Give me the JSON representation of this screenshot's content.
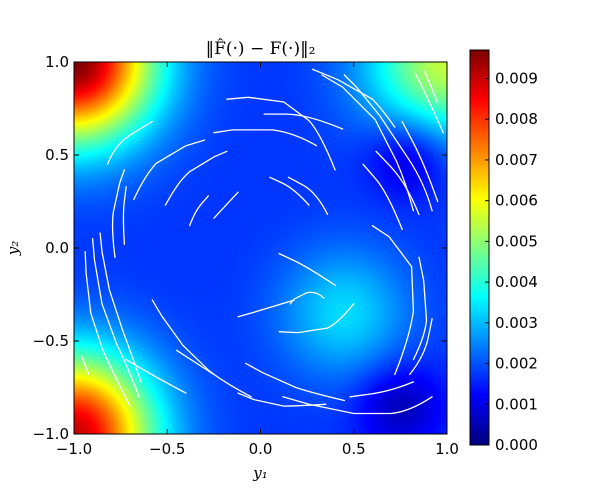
{
  "chart_data": {
    "type": "heatmap",
    "title": "‖F̂(·) − F(·)‖₂",
    "xlabel": "y₁",
    "ylabel": "y₂",
    "xlim": [
      -1.0,
      1.0
    ],
    "ylim": [
      -1.0,
      1.0
    ],
    "xticks": [
      "−1.0",
      "−0.5",
      "0.0",
      "0.5",
      "1.0"
    ],
    "yticks": [
      "1.0",
      "0.5",
      "0.0",
      "−0.5",
      "−1.0"
    ],
    "colormap": "jet",
    "colorbar": {
      "min": 0.0,
      "max": 0.0097,
      "ticks": [
        "0.009",
        "0.008",
        "0.007",
        "0.006",
        "0.005",
        "0.004",
        "0.003",
        "0.002",
        "0.001",
        "0.000"
      ]
    },
    "field_features": [
      {
        "x": -1.0,
        "y": 1.0,
        "value": 0.0097
      },
      {
        "x": -1.0,
        "y": -1.0,
        "value": 0.009
      },
      {
        "x": 1.0,
        "y": 1.0,
        "value": 0.0055
      },
      {
        "x": 0.45,
        "y": -0.35,
        "value": 0.0033
      },
      {
        "x": 0.8,
        "y": 0.5,
        "value": 0.0005
      },
      {
        "x": 0.75,
        "y": -0.85,
        "value": 0.0005
      }
    ],
    "streamline_color": "#ffffff",
    "streamlines": [
      [
        [
          -0.18,
          0.52
        ],
        [
          -0.32,
          0.46
        ],
        [
          -0.44,
          0.36
        ],
        [
          -0.51,
          0.23
        ]
      ],
      [
        [
          -0.3,
          0.58
        ],
        [
          -0.5,
          0.52
        ],
        [
          -0.62,
          0.39
        ],
        [
          -0.68,
          0.26
        ]
      ],
      [
        [
          -0.58,
          0.68
        ],
        [
          -0.78,
          0.56
        ],
        [
          -0.82,
          0.45
        ]
      ],
      [
        [
          -0.73,
          0.42
        ],
        [
          -0.78,
          0.28
        ],
        [
          -0.8,
          0.1
        ],
        [
          -0.78,
          -0.05
        ]
      ],
      [
        [
          -0.72,
          0.33
        ],
        [
          -0.74,
          0.18
        ],
        [
          -0.73,
          0.02
        ]
      ],
      [
        [
          -0.86,
          0.08
        ],
        [
          -0.84,
          -0.12
        ],
        [
          -0.78,
          -0.33
        ],
        [
          -0.7,
          -0.55
        ],
        [
          -0.64,
          -0.72
        ]
      ],
      [
        [
          -0.9,
          0.05
        ],
        [
          -0.88,
          -0.18
        ],
        [
          -0.82,
          -0.42
        ],
        [
          -0.72,
          -0.62
        ],
        [
          -0.65,
          -0.8
        ]
      ],
      [
        [
          -0.94,
          -0.02
        ],
        [
          -0.93,
          -0.25
        ],
        [
          -0.89,
          -0.45
        ],
        [
          -0.8,
          -0.65
        ],
        [
          -0.7,
          -0.85
        ]
      ],
      [
        [
          -0.96,
          -0.58
        ],
        [
          -0.92,
          -0.68
        ]
      ],
      [
        [
          -0.28,
          0.28
        ],
        [
          -0.35,
          0.2
        ],
        [
          -0.38,
          0.12
        ]
      ],
      [
        [
          -0.12,
          0.3
        ],
        [
          -0.25,
          0.16
        ]
      ],
      [
        [
          0.05,
          0.38
        ],
        [
          0.18,
          0.32
        ],
        [
          0.26,
          0.23
        ]
      ],
      [
        [
          0.15,
          0.38
        ],
        [
          0.3,
          0.3
        ],
        [
          0.36,
          0.18
        ]
      ],
      [
        [
          -0.18,
          0.8
        ],
        [
          0.05,
          0.82
        ],
        [
          0.2,
          0.75
        ],
        [
          0.32,
          0.62
        ],
        [
          0.4,
          0.42
        ]
      ],
      [
        [
          -0.25,
          0.62
        ],
        [
          -0.05,
          0.65
        ],
        [
          0.18,
          0.62
        ],
        [
          0.3,
          0.55
        ]
      ],
      [
        [
          0.02,
          0.72
        ],
        [
          0.25,
          0.72
        ],
        [
          0.44,
          0.64
        ]
      ],
      [
        [
          0.1,
          -0.03
        ],
        [
          0.25,
          -0.1
        ],
        [
          0.4,
          -0.2
        ]
      ],
      [
        [
          -0.12,
          -0.37
        ],
        [
          0.05,
          -0.32
        ],
        [
          0.18,
          -0.28
        ]
      ],
      [
        [
          0.16,
          -0.3
        ],
        [
          0.2,
          -0.25
        ],
        [
          0.3,
          -0.23
        ],
        [
          0.34,
          -0.27
        ]
      ],
      [
        [
          0.1,
          -0.45
        ],
        [
          0.3,
          -0.46
        ],
        [
          0.42,
          -0.4
        ],
        [
          0.5,
          -0.3
        ]
      ],
      [
        [
          0.28,
          0.96
        ],
        [
          0.55,
          0.85
        ],
        [
          0.65,
          0.75
        ],
        [
          0.72,
          0.65
        ]
      ],
      [
        [
          0.33,
          0.93
        ],
        [
          0.55,
          0.8
        ],
        [
          0.68,
          0.58
        ],
        [
          0.78,
          0.35
        ],
        [
          0.82,
          0.2
        ]
      ],
      [
        [
          0.45,
          0.93
        ],
        [
          0.58,
          0.8
        ],
        [
          0.7,
          0.62
        ],
        [
          0.88,
          0.35
        ],
        [
          0.92,
          0.2
        ]
      ],
      [
        [
          0.55,
          0.45
        ],
        [
          0.68,
          0.3
        ],
        [
          0.76,
          0.1
        ]
      ],
      [
        [
          0.62,
          0.52
        ],
        [
          0.78,
          0.35
        ],
        [
          0.85,
          0.18
        ]
      ],
      [
        [
          0.76,
          0.68
        ],
        [
          0.88,
          0.45
        ],
        [
          0.95,
          0.25
        ]
      ],
      [
        [
          0.83,
          0.94
        ],
        [
          0.9,
          0.8
        ],
        [
          0.98,
          0.62
        ]
      ],
      [
        [
          0.88,
          0.95
        ],
        [
          0.95,
          0.78
        ]
      ],
      [
        [
          0.6,
          0.12
        ],
        [
          0.78,
          0.0
        ],
        [
          0.84,
          -0.2
        ],
        [
          0.8,
          -0.48
        ],
        [
          0.72,
          -0.68
        ]
      ],
      [
        [
          0.85,
          -0.05
        ],
        [
          0.9,
          -0.3
        ],
        [
          0.88,
          -0.48
        ],
        [
          0.82,
          -0.6
        ]
      ],
      [
        [
          0.92,
          -0.38
        ],
        [
          0.88,
          -0.58
        ],
        [
          0.8,
          -0.68
        ]
      ],
      [
        [
          -0.58,
          -0.28
        ],
        [
          -0.48,
          -0.45
        ],
        [
          -0.35,
          -0.6
        ],
        [
          -0.2,
          -0.72
        ],
        [
          -0.05,
          -0.8
        ]
      ],
      [
        [
          -0.72,
          -0.6
        ],
        [
          -0.55,
          -0.7
        ],
        [
          -0.4,
          -0.78
        ]
      ],
      [
        [
          -0.45,
          -0.55
        ],
        [
          -0.25,
          -0.68
        ]
      ],
      [
        [
          -0.12,
          -0.78
        ],
        [
          0.05,
          -0.85
        ],
        [
          0.2,
          -0.85
        ],
        [
          0.35,
          -0.84
        ]
      ],
      [
        [
          -0.08,
          -0.62
        ],
        [
          0.1,
          -0.72
        ],
        [
          0.28,
          -0.78
        ],
        [
          0.45,
          -0.82
        ]
      ],
      [
        [
          0.12,
          -0.8
        ],
        [
          0.4,
          -0.88
        ],
        [
          0.6,
          -0.9
        ],
        [
          0.8,
          -0.88
        ],
        [
          0.92,
          -0.8
        ]
      ],
      [
        [
          0.48,
          -0.8
        ],
        [
          0.7,
          -0.77
        ],
        [
          0.82,
          -0.72
        ]
      ]
    ]
  }
}
